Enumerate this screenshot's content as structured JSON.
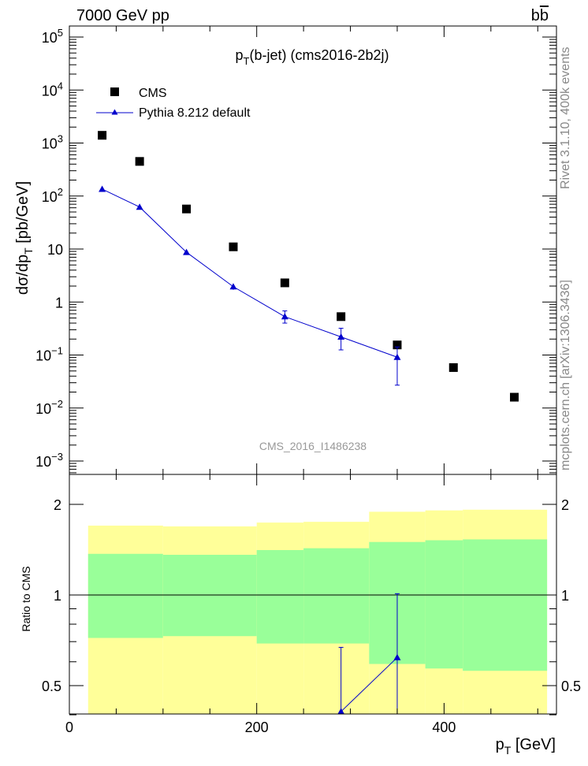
{
  "header": {
    "left": "7000 GeV pp",
    "right_main": "b",
    "right_bar": "b"
  },
  "side_labels": {
    "top": "Rivet 3.1.10,  400k events",
    "bottom": "mcplots.cern.ch [arXiv:1306.3436]"
  },
  "colors": {
    "cms": "#000000",
    "pythia": "#0000cc",
    "band_outer": "#ffff99",
    "band_inner": "#99ff99"
  },
  "chart_data": [
    {
      "type": "scatter",
      "title_main": "p",
      "title_sub": "T",
      "title_rest": "(b-jet) (cms2016-2b2j)",
      "watermark": "CMS_2016_I1486238",
      "ylabel_main": "dσ/dp",
      "ylabel_sub": "T",
      "ylabel_rest": " [pb/GeV]",
      "yscale": "log",
      "ylim": [
        0.0006,
        200000
      ],
      "xlim": [
        0,
        520
      ],
      "y_tick_labels": [
        {
          "base": "10",
          "exp": "5"
        },
        {
          "base": "10",
          "exp": "4"
        },
        {
          "base": "10",
          "exp": "3"
        },
        {
          "base": "10",
          "exp": "2"
        },
        {
          "base": "10",
          "exp": ""
        },
        {
          "base": "1",
          "exp": ""
        },
        {
          "base": "10",
          "exp": "−1"
        },
        {
          "base": "10",
          "exp": "−2"
        },
        {
          "base": "10",
          "exp": "−3"
        }
      ],
      "legend_placement": "top-left",
      "series": [
        {
          "name": "CMS",
          "marker": "square",
          "x": [
            35,
            75,
            125,
            175,
            230,
            290,
            350,
            410,
            475
          ],
          "y": [
            1400,
            450,
            57,
            11,
            2.3,
            0.53,
            0.155,
            0.058,
            0.016
          ]
        },
        {
          "name": "Pythia 8.212 default",
          "marker": "triangle",
          "x": [
            35,
            75,
            125,
            175,
            230,
            290,
            350
          ],
          "y": [
            135,
            62,
            8.7,
            1.95,
            0.53,
            0.22,
            0.091
          ],
          "y_err_low": [
            5,
            3,
            0.5,
            0.25,
            0.13,
            0.095,
            0.064
          ],
          "y_err_high": [
            5,
            3,
            0.5,
            0.25,
            0.15,
            0.1,
            0.051
          ]
        }
      ]
    },
    {
      "type": "scatter",
      "ylabel": "Ratio to CMS",
      "xlabel_main": "p",
      "xlabel_sub": "T",
      "xlabel_rest": " [GeV]",
      "xlim": [
        0,
        520
      ],
      "ylim": [
        0.33,
        2.35
      ],
      "x_tick_labels": [
        "0",
        "200",
        "400"
      ],
      "y_tick_labels": [
        "2",
        "1",
        "0.5"
      ],
      "reference_line": 1,
      "bands": {
        "edges": [
          20,
          100,
          200,
          320,
          420,
          510
        ],
        "edges_note": "bin edges of the CMS uncertainty bands",
        "x_low": [
          20,
          100,
          200,
          250,
          320,
          380,
          420
        ],
        "x_high": [
          100,
          200,
          250,
          320,
          380,
          420,
          510
        ],
        "outer_low": [
          0.72,
          0.73,
          0.69,
          0.69,
          0.59,
          0.57,
          0.56
        ],
        "outer_high": [
          1.7,
          1.69,
          1.74,
          1.75,
          1.89,
          1.91,
          1.92
        ],
        "inner_low": [
          0.72,
          0.73,
          0.69,
          0.69,
          0.59,
          0.57,
          0.56
        ],
        "inner_high": [
          1.37,
          1.36,
          1.41,
          1.43,
          1.5,
          1.52,
          1.53
        ]
      },
      "series": [
        {
          "name": "Pythia 8.212 default",
          "x": [
            290,
            350
          ],
          "y": [
            0.41,
            0.62
          ],
          "y_err_low": [
            0.16,
            0.44
          ],
          "y_err_high": [
            0.26,
            0.39
          ]
        }
      ]
    }
  ]
}
